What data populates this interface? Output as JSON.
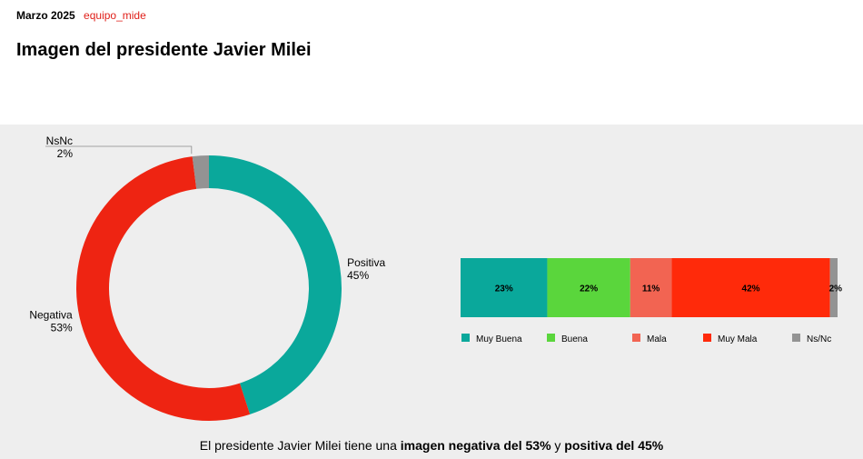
{
  "header": {
    "date": "Marzo 2025",
    "brand": "equipo_mide",
    "brand_color": "#e0201a"
  },
  "title": "Imagen del presidente Javier Milei",
  "footnote": {
    "part1": "El presidente Javier Milei tiene una ",
    "part2": "imagen negativa del 53%",
    "part3": " y ",
    "part4": "positiva del 45%"
  },
  "chart_data": [
    {
      "type": "pie",
      "subtype": "donut",
      "slices": [
        {
          "name": "Positiva",
          "value": 45,
          "label": "45%",
          "color": "#0aa89b"
        },
        {
          "name": "Negativa",
          "value": 53,
          "label": "53%",
          "color": "#ee2412"
        },
        {
          "name": "NsNc",
          "value": 2,
          "label": "2%",
          "color": "#939393"
        }
      ]
    },
    {
      "type": "bar",
      "orientation": "horizontal",
      "stacked": true,
      "segments": [
        {
          "name": "Muy Buena",
          "value": 23,
          "label": "23%",
          "color": "#0aa89b"
        },
        {
          "name": "Buena",
          "value": 22,
          "label": "22%",
          "color": "#5ad63c"
        },
        {
          "name": "Mala",
          "value": 11,
          "label": "11%",
          "color": "#f26452"
        },
        {
          "name": "Muy Mala",
          "value": 42,
          "label": "42%",
          "color": "#ff2a0a"
        },
        {
          "name": "Ns/Nc",
          "value": 2,
          "label": "2%",
          "color": "#939393"
        }
      ],
      "legend_position": "bottom"
    }
  ]
}
